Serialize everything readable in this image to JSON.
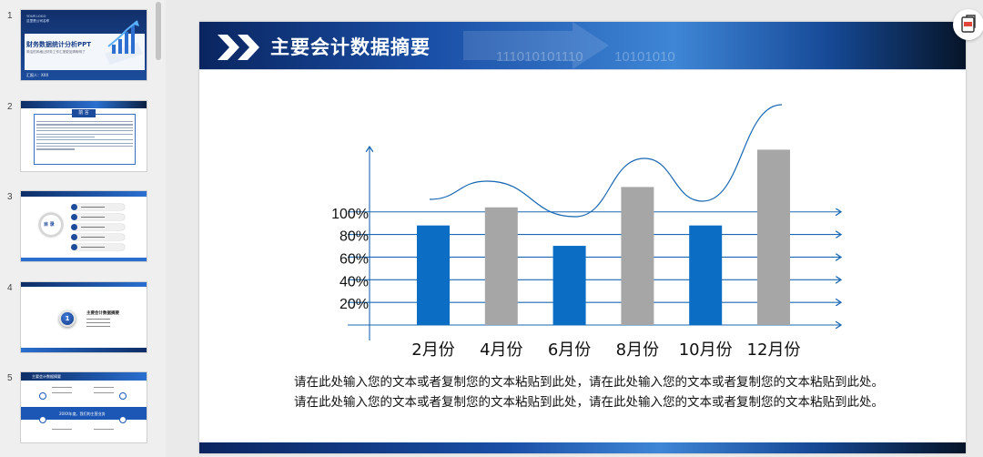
{
  "thumbnails": [
    {
      "number": "1",
      "title": "财务数据统计分析PPT",
      "subtitle": "简洁的风格让财务工作汇报更加清晰明了",
      "author_line": "汇报人：XXX",
      "tiny_header": "YOUR LOGO\n这里是公司名称"
    },
    {
      "number": "2",
      "box_title": "前 言"
    },
    {
      "number": "3",
      "circle_label": "目 录"
    },
    {
      "number": "4",
      "badge": "1",
      "heading": "主要会计数据摘要"
    },
    {
      "number": "5",
      "header_title": "主要会计数据摘要",
      "band_text": "20XX年度，我们的主营业务"
    }
  ],
  "slide": {
    "title": "主要会计数据摘要",
    "watermark_1": "111010101110",
    "watermark_2": "10101010",
    "body_lines": [
      "请在此处输入您的文本或者复制您的文本粘贴到此处，请在此处输入您的文本或者复制您的文本粘贴到此处。",
      "请在此处输入您的文本或者复制您的文本粘贴到此处，请在此处输入您的文本或者复制您的文本粘贴到此处。"
    ]
  },
  "chart_data": {
    "type": "bar",
    "categories": [
      "2月份",
      "4月份",
      "6月份",
      "8月份",
      "10月份",
      "12月份"
    ],
    "values": [
      88,
      104,
      70,
      122,
      88,
      155
    ],
    "y_tick_labels": [
      "100%",
      "80%",
      "60%",
      "40%",
      "20%"
    ],
    "y_tick_values": [
      100,
      80,
      60,
      40,
      20
    ],
    "ylim": [
      0,
      165
    ],
    "bar_colors": [
      "#0b6ec4",
      "#a6a6a6",
      "#0b6ec4",
      "#a6a6a6",
      "#0b6ec4",
      "#a6a6a6"
    ],
    "line_color": "#1a68b3",
    "curve_overlay": true,
    "grid": true
  },
  "icons": {
    "export": "export-icon"
  }
}
